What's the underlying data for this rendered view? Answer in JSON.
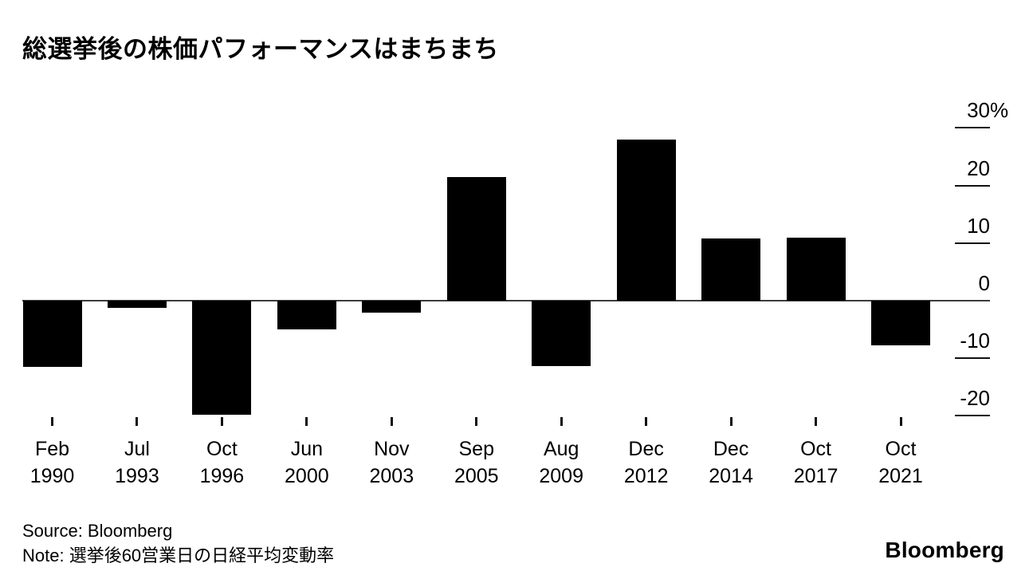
{
  "title": "総選挙後の株価パフォーマンスはまちまち",
  "footer": {
    "source_line": "Source: Bloomberg",
    "note_line": "Note: 選挙後60営業日の日経平均変動率"
  },
  "logo_text": "Bloomberg",
  "colors": {
    "bar": "#000000",
    "axis_line": "#3d3d3d",
    "tick": "#111111",
    "text": "#000000",
    "background": "#ffffff"
  },
  "chart_data": {
    "type": "bar",
    "title": "総選挙後の株価パフォーマンスはまちまち",
    "categories": [
      {
        "month": "Feb",
        "year": "1990"
      },
      {
        "month": "Jul",
        "year": "1993"
      },
      {
        "month": "Oct",
        "year": "1996"
      },
      {
        "month": "Jun",
        "year": "2000"
      },
      {
        "month": "Nov",
        "year": "2003"
      },
      {
        "month": "Sep",
        "year": "2005"
      },
      {
        "month": "Aug",
        "year": "2009"
      },
      {
        "month": "Dec",
        "year": "2012"
      },
      {
        "month": "Dec",
        "year": "2014"
      },
      {
        "month": "Oct",
        "year": "2017"
      },
      {
        "month": "Oct",
        "year": "2021"
      }
    ],
    "values": [
      -11.5,
      -1.2,
      -19.8,
      -5.0,
      -2.1,
      21.5,
      -11.3,
      28.0,
      10.8,
      11.0,
      -7.8
    ],
    "series_name": "選挙後60営業日の日経平均変動率",
    "xlabel": "",
    "ylabel": "",
    "y_unit_suffix": "%",
    "yticks": [
      30,
      20,
      10,
      0,
      -10,
      -20
    ],
    "ylim": [
      -21.5,
      35
    ],
    "grid": false,
    "legend_position": "none",
    "axis_side": "right",
    "bar_color": "#000000"
  }
}
